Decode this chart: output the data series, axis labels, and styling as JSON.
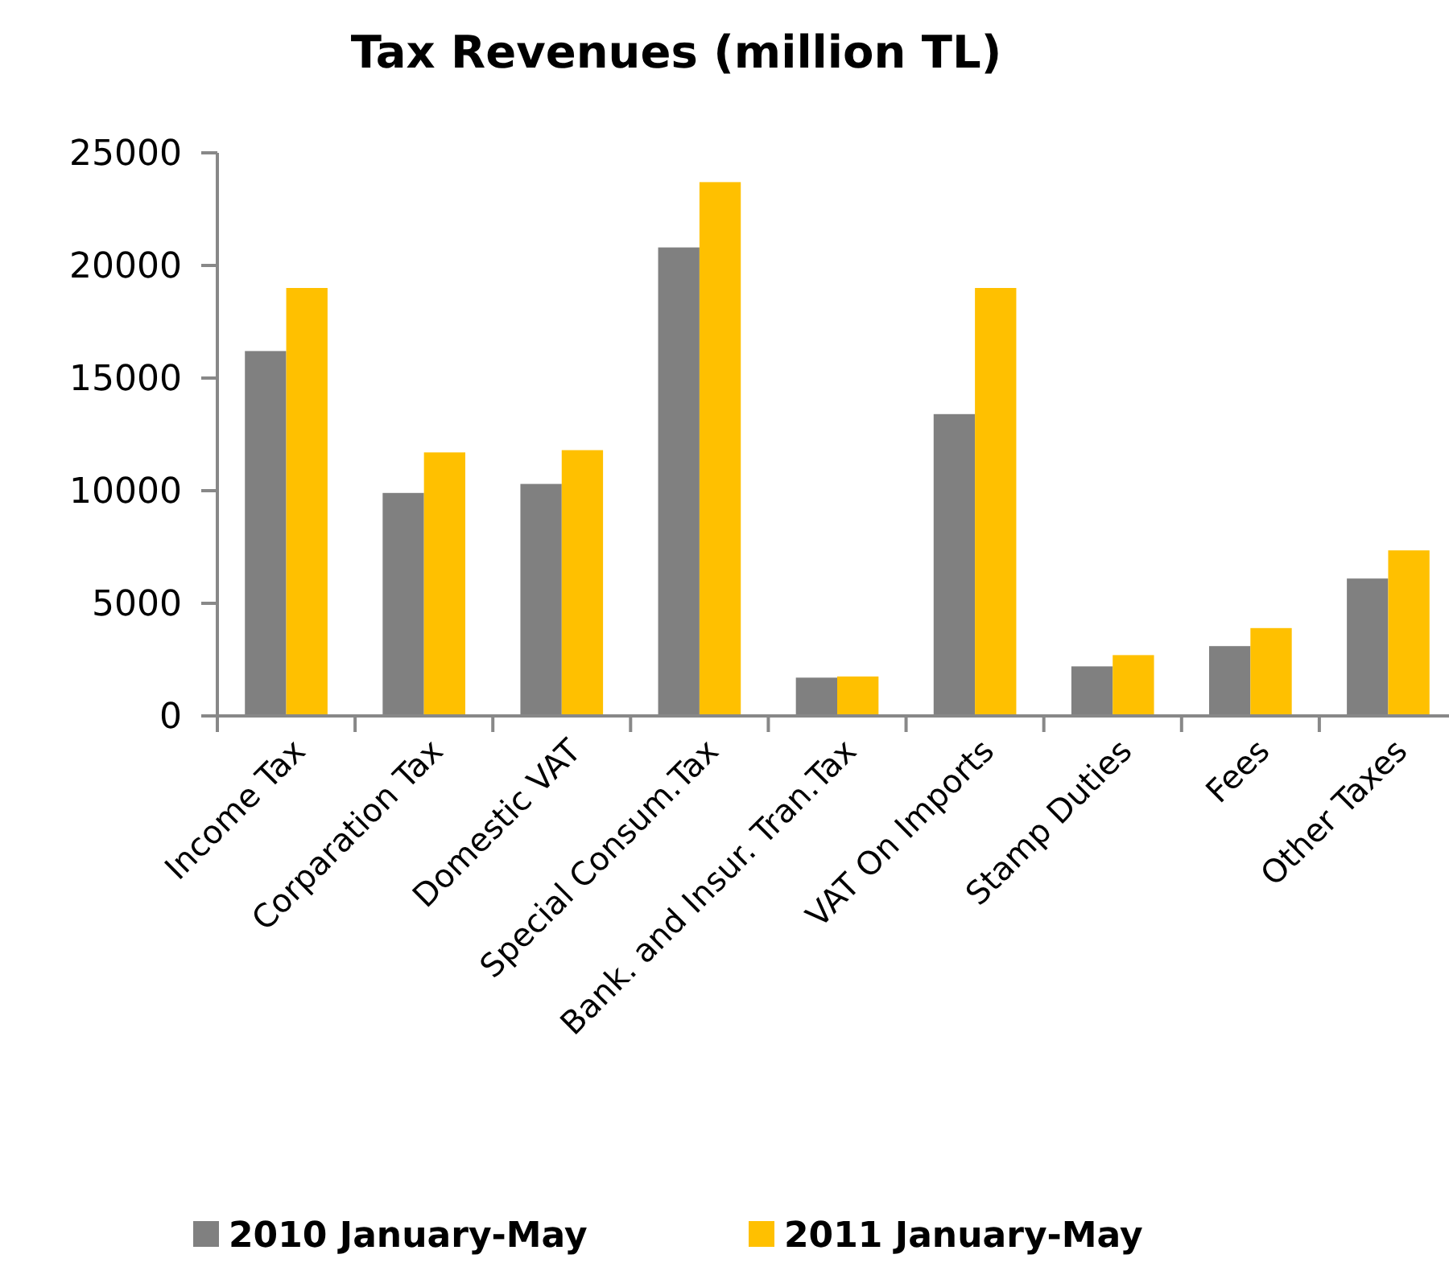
{
  "chart_data": {
    "type": "bar",
    "title": "Tax Revenues (million TL)",
    "categories": [
      "Income Tax",
      "Corparation Tax",
      "Domestic VAT",
      "Special Consum.Tax",
      "Bank. and Insur. Tran.Tax",
      "VAT On Imports",
      "Stamp Duties",
      "Fees",
      "Other Taxes"
    ],
    "series": [
      {
        "name": "2010 January-May",
        "color": "#808080",
        "values": [
          16200,
          9900,
          10300,
          20800,
          1700,
          13400,
          2200,
          3100,
          6100
        ]
      },
      {
        "name": "2011 January-May",
        "color": "#ffc000",
        "values": [
          19000,
          11700,
          11800,
          23700,
          1750,
          19000,
          2700,
          3900,
          7350
        ]
      }
    ],
    "ylim": [
      0,
      25000
    ],
    "yticks": [
      0,
      5000,
      10000,
      15000,
      20000,
      25000
    ],
    "legend": "bottom"
  }
}
